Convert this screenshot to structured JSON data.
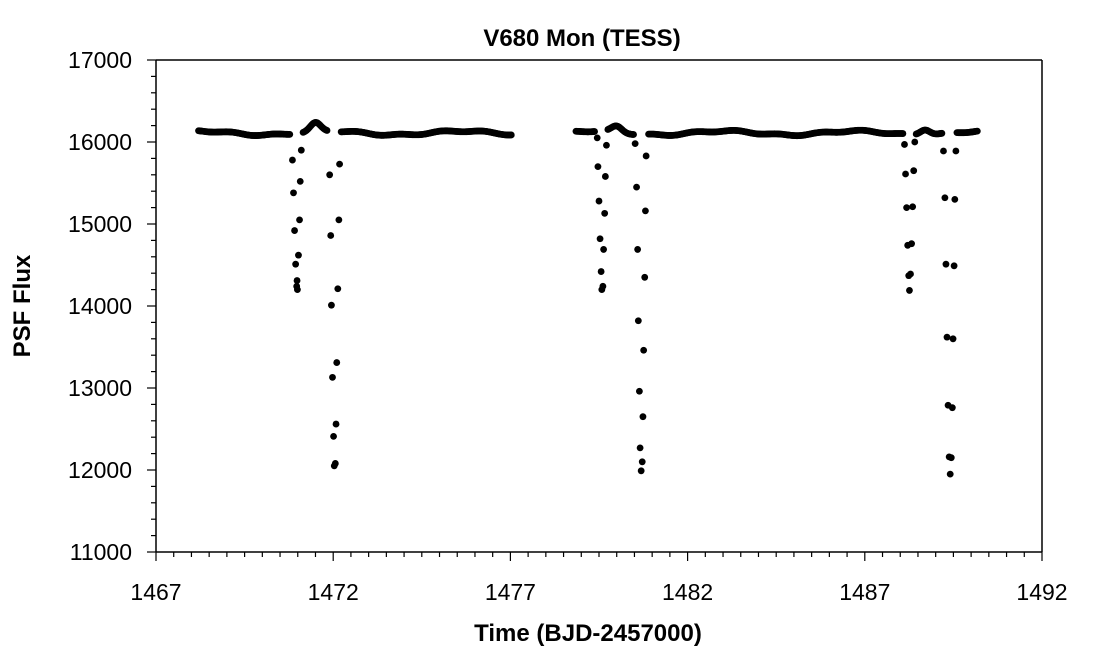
{
  "chart_data": {
    "type": "scatter",
    "title": "V680 Mon (TESS)",
    "xlabel": "Time (BJD-2457000)",
    "ylabel": "PSF Flux",
    "xlim": [
      1467,
      1492
    ],
    "ylim": [
      11000,
      17000
    ],
    "x_ticks": [
      1467,
      1472,
      1477,
      1482,
      1487,
      1492
    ],
    "y_ticks": [
      11000,
      12000,
      13000,
      14000,
      15000,
      16000,
      17000
    ],
    "marker_color": "#000000",
    "grid": false,
    "baseline_segments": [
      {
        "x_start": 1468.2,
        "x_end": 1477.05,
        "flux": 16130
      },
      {
        "x_start": 1478.85,
        "x_end": 1490.2,
        "flux": 16130
      }
    ],
    "bump_peaks": [
      {
        "x": 1471.5,
        "flux": 16230
      },
      {
        "x": 1480.0,
        "flux": 16200
      },
      {
        "x": 1488.7,
        "flux": 16200
      }
    ],
    "eclipse_points": [
      {
        "x": 1470.85,
        "y": 15780
      },
      {
        "x": 1470.88,
        "y": 15380
      },
      {
        "x": 1470.91,
        "y": 14920
      },
      {
        "x": 1470.94,
        "y": 14510
      },
      {
        "x": 1470.97,
        "y": 14240
      },
      {
        "x": 1470.99,
        "y": 14200
      },
      {
        "x": 1470.98,
        "y": 14310
      },
      {
        "x": 1471.02,
        "y": 14620
      },
      {
        "x": 1471.05,
        "y": 15050
      },
      {
        "x": 1471.07,
        "y": 15520
      },
      {
        "x": 1471.1,
        "y": 15900
      },
      {
        "x": 1471.9,
        "y": 15600
      },
      {
        "x": 1471.93,
        "y": 14860
      },
      {
        "x": 1471.95,
        "y": 14010
      },
      {
        "x": 1471.98,
        "y": 13130
      },
      {
        "x": 1472.01,
        "y": 12410
      },
      {
        "x": 1472.03,
        "y": 12050
      },
      {
        "x": 1472.06,
        "y": 12080
      },
      {
        "x": 1472.08,
        "y": 12560
      },
      {
        "x": 1472.1,
        "y": 13310
      },
      {
        "x": 1472.13,
        "y": 14210
      },
      {
        "x": 1472.16,
        "y": 15050
      },
      {
        "x": 1472.18,
        "y": 15730
      },
      {
        "x": 1479.45,
        "y": 16050
      },
      {
        "x": 1479.47,
        "y": 15700
      },
      {
        "x": 1479.5,
        "y": 15280
      },
      {
        "x": 1479.53,
        "y": 14820
      },
      {
        "x": 1479.56,
        "y": 14420
      },
      {
        "x": 1479.58,
        "y": 14200
      },
      {
        "x": 1479.61,
        "y": 14240
      },
      {
        "x": 1479.63,
        "y": 14690
      },
      {
        "x": 1479.66,
        "y": 15130
      },
      {
        "x": 1479.68,
        "y": 15580
      },
      {
        "x": 1479.71,
        "y": 15960
      },
      {
        "x": 1480.52,
        "y": 15980
      },
      {
        "x": 1480.56,
        "y": 15450
      },
      {
        "x": 1480.59,
        "y": 14690
      },
      {
        "x": 1480.61,
        "y": 13820
      },
      {
        "x": 1480.64,
        "y": 12960
      },
      {
        "x": 1480.66,
        "y": 12270
      },
      {
        "x": 1480.69,
        "y": 11990
      },
      {
        "x": 1480.72,
        "y": 12100
      },
      {
        "x": 1480.74,
        "y": 12650
      },
      {
        "x": 1480.76,
        "y": 13460
      },
      {
        "x": 1480.79,
        "y": 14350
      },
      {
        "x": 1480.81,
        "y": 15160
      },
      {
        "x": 1480.83,
        "y": 15830
      },
      {
        "x": 1488.12,
        "y": 15970
      },
      {
        "x": 1488.15,
        "y": 15610
      },
      {
        "x": 1488.18,
        "y": 15200
      },
      {
        "x": 1488.21,
        "y": 14740
      },
      {
        "x": 1488.24,
        "y": 14370
      },
      {
        "x": 1488.26,
        "y": 14190
      },
      {
        "x": 1488.29,
        "y": 14390
      },
      {
        "x": 1488.32,
        "y": 14760
      },
      {
        "x": 1488.35,
        "y": 15210
      },
      {
        "x": 1488.38,
        "y": 15650
      },
      {
        "x": 1488.41,
        "y": 16000
      },
      {
        "x": 1489.22,
        "y": 15890
      },
      {
        "x": 1489.26,
        "y": 15320
      },
      {
        "x": 1489.29,
        "y": 14510
      },
      {
        "x": 1489.32,
        "y": 13620
      },
      {
        "x": 1489.35,
        "y": 12790
      },
      {
        "x": 1489.38,
        "y": 12160
      },
      {
        "x": 1489.41,
        "y": 11950
      },
      {
        "x": 1489.44,
        "y": 12150
      },
      {
        "x": 1489.47,
        "y": 12760
      },
      {
        "x": 1489.49,
        "y": 13600
      },
      {
        "x": 1489.52,
        "y": 14490
      },
      {
        "x": 1489.54,
        "y": 15300
      },
      {
        "x": 1489.57,
        "y": 15890
      }
    ]
  }
}
